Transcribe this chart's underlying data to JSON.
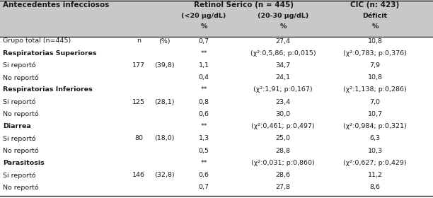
{
  "title_col1": "Antecedentes infecciosos",
  "title_col2": "Retinol Sérico (n = 445)",
  "title_col3": "CIC (n: 423)",
  "subtitle_col2a": "(<20 μg/dL)",
  "subtitle_col2b": "(20-30 μg/dL)",
  "subtitle_col3": "Déficit",
  "pct_label": "%",
  "rows": [
    {
      "label": "Grupo total (n=445)",
      "n": "n",
      "pct": "(%)",
      "v1": "0,7",
      "v2": "27,4",
      "v3": "10,8",
      "bold": false,
      "italic_vals": false
    },
    {
      "label": "Respiratorias Superiores",
      "n": "",
      "pct": "",
      "v1": "**",
      "v2": "(χ²:0,5,86; p:0,015)",
      "v3": "(χ²:0,783; p:0,376)",
      "bold": true,
      "italic_vals": false
    },
    {
      "label": "Si reportó",
      "n": "177",
      "pct": "(39,8)",
      "v1": "1,1",
      "v2": "34,7",
      "v3": "7,9",
      "bold": false,
      "italic_vals": false
    },
    {
      "label": "No reportó",
      "n": "",
      "pct": "",
      "v1": "0,4",
      "v2": "24,1",
      "v3": "10,8",
      "bold": false,
      "italic_vals": false
    },
    {
      "label": "Respiratorias Inferiores",
      "n": "",
      "pct": "",
      "v1": "**",
      "v2": "(χ²:1,91; p:0,167)",
      "v3": "(χ²:1,138; p:0,286)",
      "bold": true,
      "italic_vals": false
    },
    {
      "label": "Si reportó",
      "n": "125",
      "pct": "(28,1)",
      "v1": "0,8",
      "v2": "23,4",
      "v3": "7,0",
      "bold": false,
      "italic_vals": false
    },
    {
      "label": "No reportó",
      "n": "",
      "pct": "",
      "v1": "0,6",
      "v2": "30,0",
      "v3": "10,7",
      "bold": false,
      "italic_vals": false
    },
    {
      "label": "Diarrea",
      "n": "",
      "pct": "",
      "v1": "**",
      "v2": "(χ²:0,461; p:0,497)",
      "v3": "(χ²:0,984; p:0,321)",
      "bold": true,
      "italic_vals": false
    },
    {
      "label": "Si reportó",
      "n": "80",
      "pct": "(18,0)",
      "v1": "1,3",
      "v2": "25,0",
      "v3": "6,3",
      "bold": false,
      "italic_vals": false
    },
    {
      "label": "No reportó",
      "n": "",
      "pct": "",
      "v1": "0,5",
      "v2": "28,8",
      "v3": "10,3",
      "bold": false,
      "italic_vals": false
    },
    {
      "label": "Parasitosis",
      "n": "",
      "pct": "",
      "v1": "**",
      "v2": "(χ²:0,031; p:0,860)",
      "v3": "(χ²:0,627; p:0,429)",
      "bold": true,
      "italic_vals": false
    },
    {
      "label": "Si reportó",
      "n": "146",
      "pct": "(32,8)",
      "v1": "0,6",
      "v2": "28,6",
      "v3": "11,2",
      "bold": false,
      "italic_vals": false
    },
    {
      "label": "No reportó",
      "n": "",
      "pct": "",
      "v1": "0,7",
      "v2": "27,8",
      "v3": "8,6",
      "bold": false,
      "italic_vals": false
    }
  ],
  "bg_color": "#ffffff",
  "text_color": "#1a1a1a",
  "header_bg": "#c8c8c8",
  "font_size": 6.8,
  "header_font_size": 7.5,
  "fig_width": 6.12,
  "fig_height": 2.8,
  "dpi": 100
}
